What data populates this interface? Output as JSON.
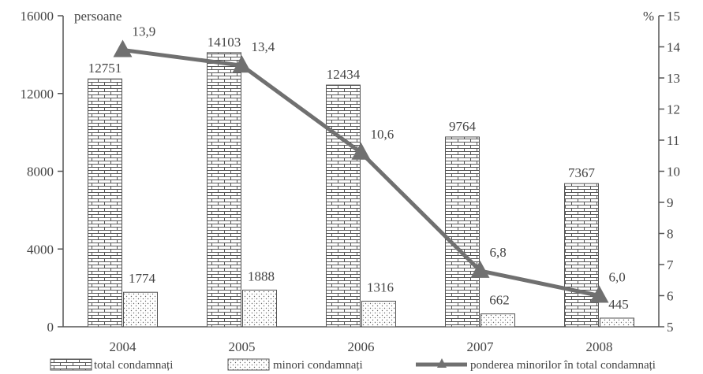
{
  "chart_data": {
    "type": "bar",
    "categories": [
      "2004",
      "2005",
      "2006",
      "2007",
      "2008"
    ],
    "series": [
      {
        "name": "total condamnați",
        "values": [
          12751,
          14103,
          12434,
          9764,
          7367
        ],
        "axis": "left",
        "pattern": "brick"
      },
      {
        "name": "minori condamnați",
        "values": [
          1774,
          1888,
          1316,
          662,
          445
        ],
        "axis": "left",
        "pattern": "dots"
      },
      {
        "name": "ponderea minorilor în total condamnați",
        "type": "line",
        "values": [
          13.9,
          13.4,
          10.6,
          6.8,
          6.0
        ],
        "value_labels": [
          "13,9",
          "13,4",
          "10,6",
          "6,8",
          "6,0"
        ],
        "axis": "right",
        "marker": "triangle",
        "color": "#707070"
      }
    ],
    "left_axis": {
      "unit": "persoane",
      "ylim": [
        0,
        16000
      ],
      "ticks": [
        0,
        4000,
        8000,
        12000,
        16000
      ],
      "tick_labels": [
        "0",
        "4000",
        "8000",
        "12000",
        "16000"
      ]
    },
    "right_axis": {
      "unit": "%",
      "ylim": [
        5,
        15
      ],
      "ticks": [
        5,
        6,
        7,
        8,
        9,
        10,
        11,
        12,
        13,
        14,
        15
      ],
      "tick_labels": [
        "5",
        "6",
        "7",
        "8",
        "9",
        "10",
        "11",
        "12",
        "13",
        "14",
        "15"
      ]
    },
    "grid": false,
    "legend": "bottom"
  }
}
